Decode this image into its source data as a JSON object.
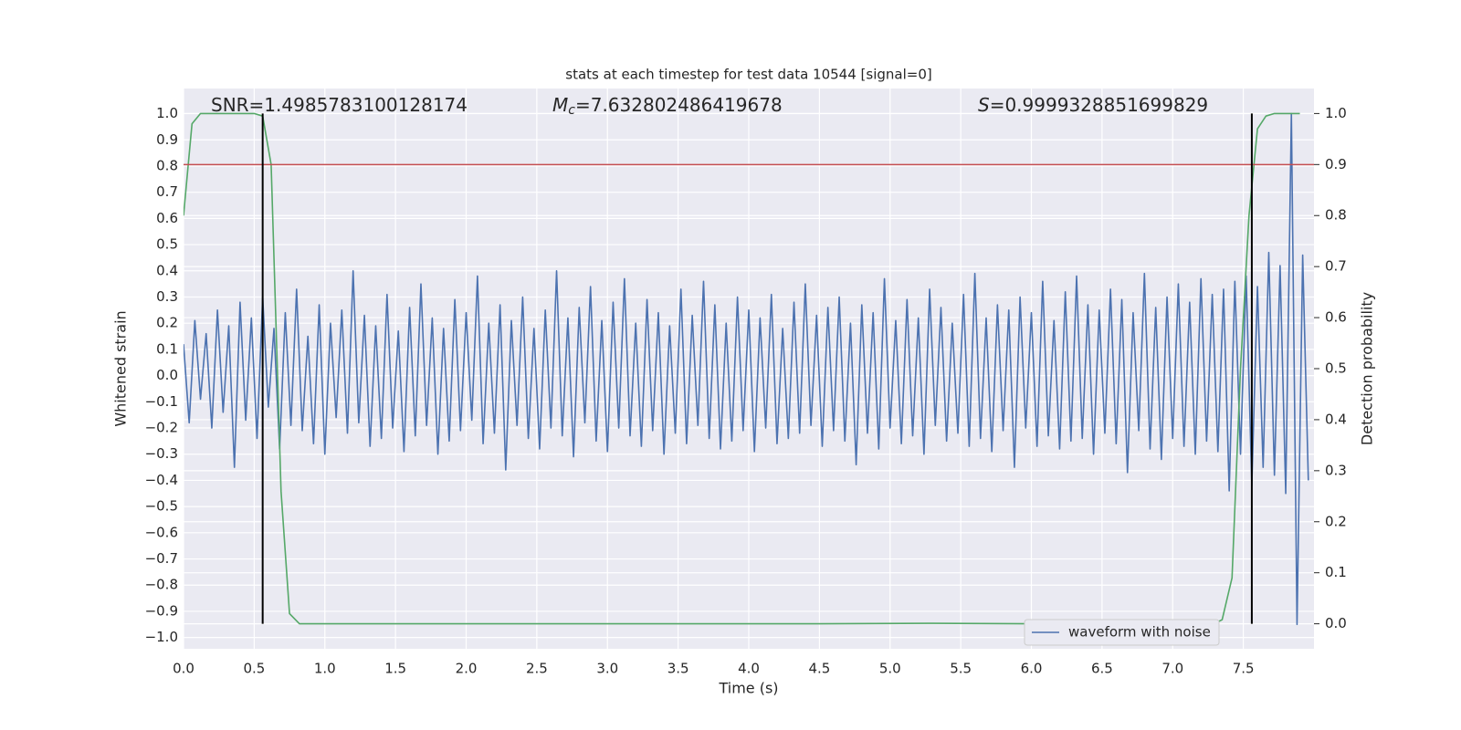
{
  "chart_data": {
    "type": "line",
    "title": "stats at each timestep for test data 10544 [signal=0]",
    "x_label": "Time (s)",
    "y_label": "Whitened strain",
    "y2_label": "Detection probability",
    "grid": true,
    "legend": "lower right",
    "xlim": [
      0,
      8.0
    ],
    "ylim": [
      -1.043,
      1.096
    ],
    "y2lim": [
      -0.049,
      1.049
    ],
    "xticks": [
      {
        "value": 0,
        "label": "0.0"
      },
      {
        "value": 0.5,
        "label": "0.5"
      },
      {
        "value": 1,
        "label": "1.0"
      },
      {
        "value": 1.5,
        "label": "1.5"
      },
      {
        "value": 2,
        "label": "2.0"
      },
      {
        "value": 2.5,
        "label": "2.5"
      },
      {
        "value": 3,
        "label": "3.0"
      },
      {
        "value": 3.5,
        "label": "3.5"
      },
      {
        "value": 4,
        "label": "4.0"
      },
      {
        "value": 4.5,
        "label": "4.5"
      },
      {
        "value": 5,
        "label": "5.0"
      },
      {
        "value": 5.5,
        "label": "5.5"
      },
      {
        "value": 6,
        "label": "6.0"
      },
      {
        "value": 6.5,
        "label": "6.5"
      },
      {
        "value": 7,
        "label": "7.0"
      },
      {
        "value": 7.5,
        "label": "7.5"
      }
    ],
    "yticks": [
      {
        "value": -1,
        "label": "−1.0"
      },
      {
        "value": -0.9,
        "label": "−0.9"
      },
      {
        "value": -0.8,
        "label": "−0.8"
      },
      {
        "value": -0.7,
        "label": "−0.7"
      },
      {
        "value": -0.6,
        "label": "−0.6"
      },
      {
        "value": -0.5,
        "label": "−0.5"
      },
      {
        "value": -0.4,
        "label": "−0.4"
      },
      {
        "value": -0.3,
        "label": "−0.3"
      },
      {
        "value": -0.2,
        "label": "−0.2"
      },
      {
        "value": -0.1,
        "label": "−0.1"
      },
      {
        "value": 0,
        "label": "0.0"
      },
      {
        "value": 0.1,
        "label": "0.1"
      },
      {
        "value": 0.2,
        "label": "0.2"
      },
      {
        "value": 0.3,
        "label": "0.3"
      },
      {
        "value": 0.4,
        "label": "0.4"
      },
      {
        "value": 0.5,
        "label": "0.5"
      },
      {
        "value": 0.6,
        "label": "0.6"
      },
      {
        "value": 0.7,
        "label": "0.7"
      },
      {
        "value": 0.8,
        "label": "0.8"
      },
      {
        "value": 0.9,
        "label": "0.9"
      },
      {
        "value": 1,
        "label": "1.0"
      }
    ],
    "y2ticks": [
      {
        "value": 0,
        "label": "0.0"
      },
      {
        "value": 0.1,
        "label": "0.1"
      },
      {
        "value": 0.2,
        "label": "0.2"
      },
      {
        "value": 0.3,
        "label": "0.3"
      },
      {
        "value": 0.4,
        "label": "0.4"
      },
      {
        "value": 0.5,
        "label": "0.5"
      },
      {
        "value": 0.6,
        "label": "0.6"
      },
      {
        "value": 0.7,
        "label": "0.7"
      },
      {
        "value": 0.8,
        "label": "0.8"
      },
      {
        "value": 0.9,
        "label": "0.9"
      },
      {
        "value": 1,
        "label": "1.0"
      }
    ],
    "annotations": [
      {
        "text": "SNR=1.4985783100128174"
      },
      {
        "symbol": "M",
        "subscript": "c",
        "text": "=7.632802486419678"
      },
      {
        "symbol": "S",
        "text": "=0.9999328851699829"
      }
    ],
    "threshold": {
      "value": 0.9,
      "axis": "y2",
      "color": "#c44e52"
    },
    "vlines": {
      "x": [
        0.56,
        7.56
      ],
      "span": [
        0,
        1
      ],
      "axis": "y2",
      "color": "#000000"
    },
    "series": [
      {
        "name": "waveform with noise",
        "color": "#4c72b0",
        "x": [
          0,
          0.04,
          0.08,
          0.12,
          0.16,
          0.2,
          0.24,
          0.28,
          0.32,
          0.36,
          0.4,
          0.44,
          0.48,
          0.52,
          0.56,
          0.6,
          0.64,
          0.68,
          0.72,
          0.76,
          0.8,
          0.84,
          0.88,
          0.92,
          0.96,
          1,
          1.04,
          1.08,
          1.12,
          1.16,
          1.2,
          1.24,
          1.28,
          1.32,
          1.36,
          1.4,
          1.44,
          1.48,
          1.52,
          1.56,
          1.6,
          1.64,
          1.68,
          1.72,
          1.76,
          1.8,
          1.84,
          1.88,
          1.92,
          1.96,
          2,
          2.04,
          2.08,
          2.12,
          2.16,
          2.2,
          2.24,
          2.28,
          2.32,
          2.36,
          2.4,
          2.44,
          2.48,
          2.52,
          2.56,
          2.6,
          2.64,
          2.68,
          2.72,
          2.76,
          2.8,
          2.84,
          2.88,
          2.92,
          2.96,
          3,
          3.04,
          3.08,
          3.12,
          3.16,
          3.2,
          3.24,
          3.28,
          3.32,
          3.36,
          3.4,
          3.44,
          3.48,
          3.52,
          3.56,
          3.6,
          3.64,
          3.68,
          3.72,
          3.76,
          3.8,
          3.84,
          3.88,
          3.92,
          3.96,
          4,
          4.04,
          4.08,
          4.12,
          4.16,
          4.2,
          4.24,
          4.28,
          4.32,
          4.36,
          4.4,
          4.44,
          4.48,
          4.52,
          4.56,
          4.6,
          4.64,
          4.68,
          4.72,
          4.76,
          4.8,
          4.84,
          4.88,
          4.92,
          4.96,
          5,
          5.04,
          5.08,
          5.12,
          5.16,
          5.2,
          5.24,
          5.28,
          5.32,
          5.36,
          5.4,
          5.44,
          5.48,
          5.52,
          5.56,
          5.6,
          5.64,
          5.68,
          5.72,
          5.76,
          5.8,
          5.84,
          5.88,
          5.92,
          5.96,
          6,
          6.04,
          6.08,
          6.12,
          6.16,
          6.2,
          6.24,
          6.28,
          6.32,
          6.36,
          6.4,
          6.44,
          6.48,
          6.52,
          6.56,
          6.6,
          6.64,
          6.68,
          6.72,
          6.76,
          6.8,
          6.84,
          6.88,
          6.92,
          6.96,
          7,
          7.04,
          7.08,
          7.12,
          7.16,
          7.2,
          7.24,
          7.28,
          7.32,
          7.36,
          7.4,
          7.44,
          7.48,
          7.52,
          7.56,
          7.6,
          7.64,
          7.68,
          7.72,
          7.76,
          7.8,
          7.84,
          7.88,
          7.92,
          7.96
        ],
        "values": [
          0.12,
          -0.18,
          0.21,
          -0.09,
          0.16,
          -0.2,
          0.25,
          -0.14,
          0.19,
          -0.35,
          0.28,
          -0.17,
          0.22,
          -0.24,
          0.3,
          -0.12,
          0.18,
          -0.28,
          0.24,
          -0.19,
          0.33,
          -0.21,
          0.15,
          -0.26,
          0.27,
          -0.3,
          0.2,
          -0.16,
          0.25,
          -0.22,
          0.4,
          -0.18,
          0.23,
          -0.27,
          0.19,
          -0.24,
          0.31,
          -0.2,
          0.17,
          -0.29,
          0.26,
          -0.23,
          0.35,
          -0.19,
          0.22,
          -0.3,
          0.18,
          -0.25,
          0.29,
          -0.21,
          0.24,
          -0.17,
          0.38,
          -0.26,
          0.2,
          -0.22,
          0.27,
          -0.36,
          0.21,
          -0.19,
          0.3,
          -0.24,
          0.18,
          -0.28,
          0.25,
          -0.2,
          0.4,
          -0.23,
          0.22,
          -0.31,
          0.26,
          -0.18,
          0.34,
          -0.25,
          0.21,
          -0.29,
          0.28,
          -0.2,
          0.37,
          -0.23,
          0.2,
          -0.27,
          0.29,
          -0.21,
          0.24,
          -0.3,
          0.19,
          -0.22,
          0.33,
          -0.26,
          0.23,
          -0.19,
          0.36,
          -0.24,
          0.27,
          -0.28,
          0.2,
          -0.25,
          0.3,
          -0.21,
          0.25,
          -0.29,
          0.22,
          -0.2,
          0.31,
          -0.26,
          0.18,
          -0.24,
          0.28,
          -0.22,
          0.35,
          -0.19,
          0.23,
          -0.27,
          0.26,
          -0.21,
          0.3,
          -0.25,
          0.2,
          -0.34,
          0.27,
          -0.22,
          0.24,
          -0.28,
          0.37,
          -0.2,
          0.21,
          -0.26,
          0.29,
          -0.23,
          0.22,
          -0.3,
          0.33,
          -0.19,
          0.26,
          -0.25,
          0.2,
          -0.22,
          0.31,
          -0.27,
          0.39,
          -0.24,
          0.22,
          -0.29,
          0.27,
          -0.21,
          0.25,
          -0.35,
          0.3,
          -0.2,
          0.24,
          -0.27,
          0.36,
          -0.23,
          0.21,
          -0.28,
          0.32,
          -0.25,
          0.38,
          -0.24,
          0.27,
          -0.3,
          0.25,
          -0.22,
          0.33,
          -0.26,
          0.29,
          -0.37,
          0.24,
          -0.21,
          0.39,
          -0.28,
          0.26,
          -0.32,
          0.3,
          -0.24,
          0.35,
          -0.27,
          0.28,
          -0.3,
          0.37,
          -0.25,
          0.31,
          -0.29,
          0.33,
          -0.44,
          0.36,
          -0.3,
          0.38,
          -0.42,
          0.34,
          -0.35,
          0.47,
          -0.38,
          0.42,
          -0.45,
          1.0,
          -0.95,
          0.46,
          -0.4
        ]
      },
      {
        "color": "#55a868",
        "axis": "y2",
        "x": [
          0,
          0.06,
          0.12,
          0.2,
          0.3,
          0.4,
          0.5,
          0.56,
          0.62,
          0.69,
          0.75,
          0.82,
          0.9,
          1.5,
          3,
          4.5,
          5.3,
          6,
          7,
          7.3,
          7.35,
          7.42,
          7.48,
          7.54,
          7.6,
          7.66,
          7.72,
          7.9
        ],
        "values": [
          0.8,
          0.98,
          1.0,
          1.0,
          1.0,
          1.0,
          1.0,
          0.995,
          0.9,
          0.26,
          0.02,
          0.0,
          0.0,
          0.0,
          0.0,
          0.0,
          0.001,
          0.0,
          0.001,
          0.001,
          0.008,
          0.09,
          0.5,
          0.8,
          0.97,
          0.995,
          1.0,
          1.0
        ]
      }
    ]
  }
}
